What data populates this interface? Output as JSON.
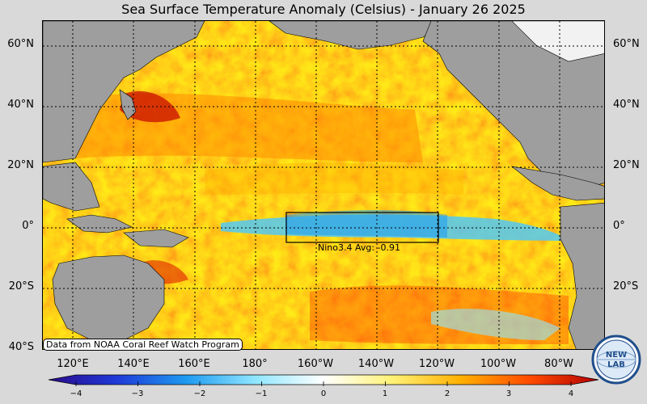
{
  "title": "Sea Surface Temperature Anomaly (Celsius) - January 26 2025",
  "lat_labels": [
    "60°N",
    "40°N",
    "20°N",
    "0°",
    "20°S",
    "40°S"
  ],
  "lon_labels": [
    "120°E",
    "140°E",
    "160°E",
    "180°",
    "160°W",
    "140°W",
    "120°W",
    "100°W",
    "80°W"
  ],
  "nino_box": {
    "name": "Nino3.4",
    "label": "Nino3.4 Avg: -0.91",
    "avg": -0.91,
    "lon_range": [
      "170°W",
      "120°W"
    ],
    "lat_range": [
      "5°S",
      "5°N"
    ]
  },
  "credit": "Data from NOAA Coral Reef Watch Program",
  "colorbar": {
    "ticks": [
      "−4",
      "−3",
      "−2",
      "−1",
      "0",
      "1",
      "2",
      "3",
      "4"
    ],
    "min": -4,
    "max": 4,
    "colors": [
      "#2a0a8c",
      "#1e3ad8",
      "#1e9af0",
      "#8fe6ff",
      "#ffffff",
      "#fff176",
      "#ffb000",
      "#ff4a00",
      "#b30000"
    ]
  },
  "colors": {
    "land": "#9e9e9e",
    "ocean_warm": "#ffb800",
    "ocean_cool": "#52c8f5",
    "background": "#d9d9d9"
  },
  "logo": {
    "text": "NEW LAB",
    "name": "NEW LAB logo"
  }
}
